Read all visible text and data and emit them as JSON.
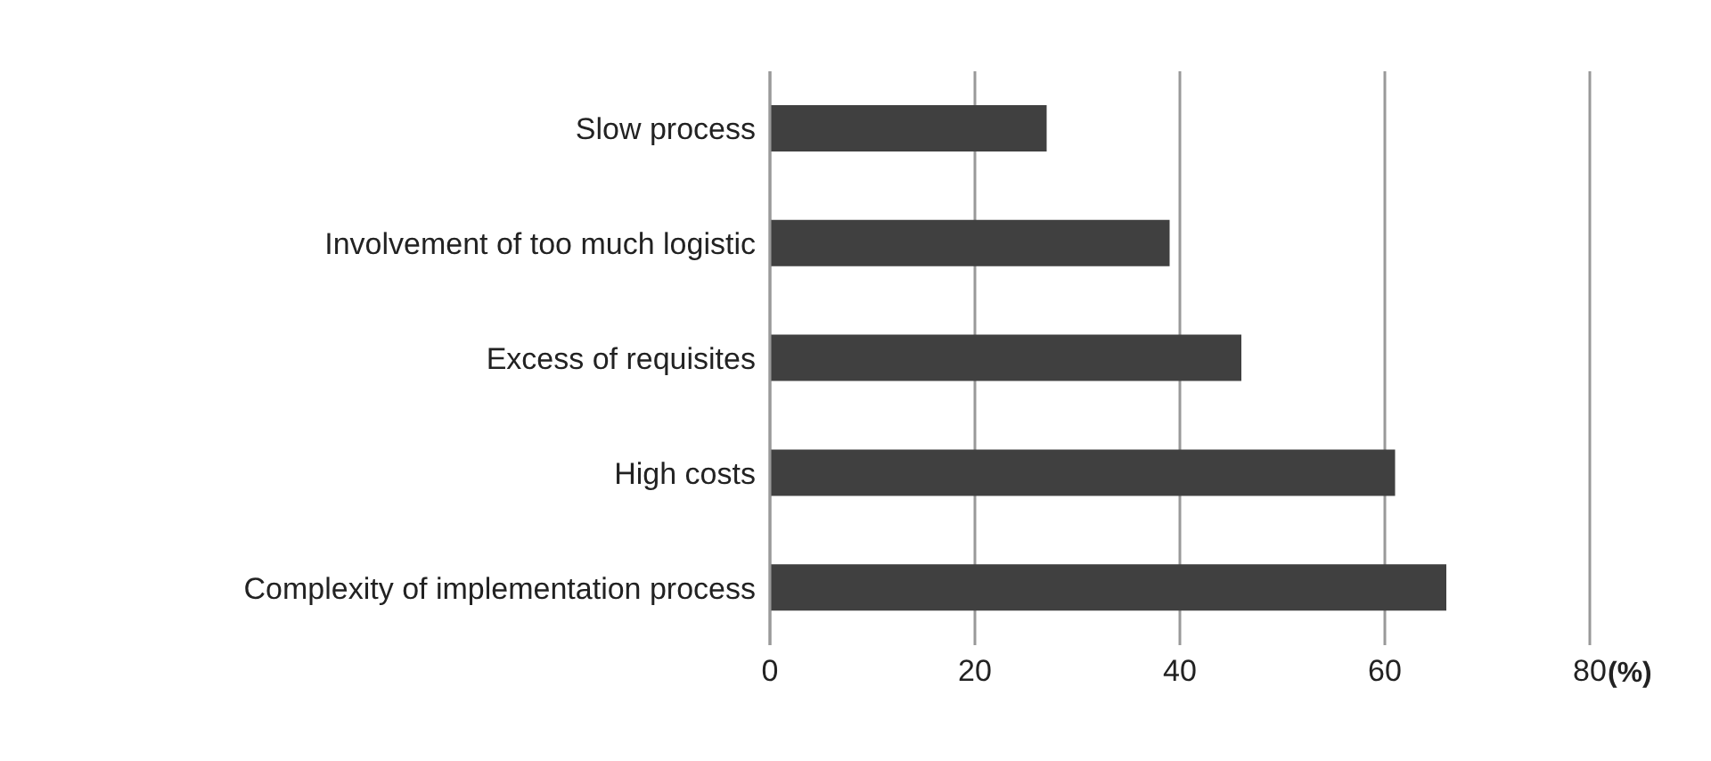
{
  "chart_data": {
    "type": "bar",
    "orientation": "horizontal",
    "xlabel": "(%)",
    "categories": [
      "Slow process",
      "Involvement of too much logistic",
      "Excess of requisites",
      "High costs",
      "Complexity of implementation process"
    ],
    "values": [
      27,
      39,
      46,
      61,
      66
    ],
    "color": "#404040",
    "xlim": [
      0,
      80
    ],
    "xticks": [
      0,
      20,
      40,
      60,
      80
    ],
    "grid": "x",
    "legend": false
  }
}
